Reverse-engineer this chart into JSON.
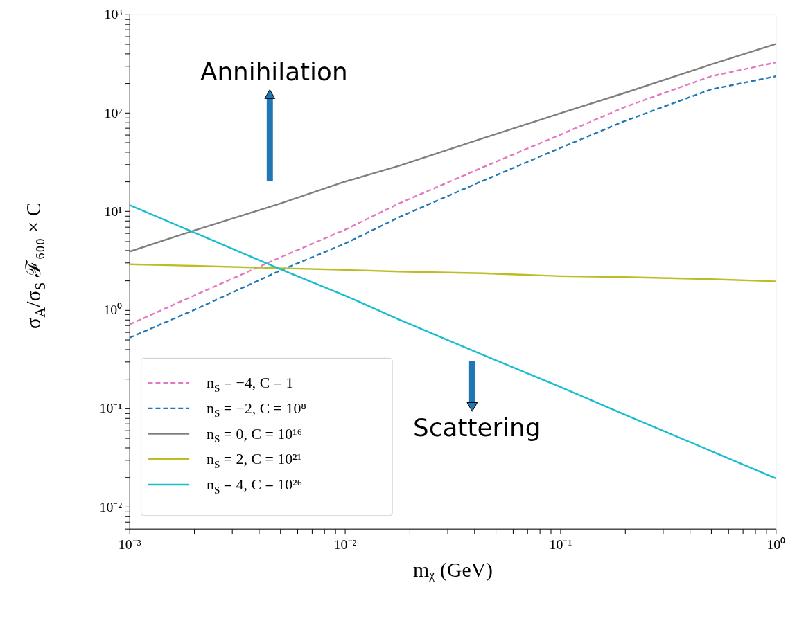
{
  "chart_data": {
    "type": "line",
    "xlabel": "mᵪ (GeV)",
    "ylabel": "σ$_{A}$/σ$_{S}$ ℱ₆₀₀ × C",
    "x": [
      0.001,
      0.002,
      0.005,
      0.01,
      0.0178,
      0.0436,
      0.1,
      0.2,
      0.5,
      1.0
    ],
    "series": [
      {
        "name": "n$_{S}$ = −4, C = 1",
        "color": "#e377c2",
        "line_style": "dashed",
        "values": [
          0.71,
          1.4,
          3.4,
          6.5,
          12,
          28,
          60,
          115,
          235,
          325
        ]
      },
      {
        "name": "n$_{S}$ = −2, C = 10⁸",
        "color": "#1f77b4",
        "line_style": "dashed",
        "values": [
          0.52,
          1.0,
          2.5,
          4.7,
          8.7,
          20.4,
          44,
          83,
          173,
          235
        ]
      },
      {
        "name": "n$_{S}$ = 0, C = 10¹⁶",
        "color": "#7f7f7f",
        "line_style": "solid",
        "values": [
          3.9,
          6.4,
          12,
          20,
          29,
          55,
          99,
          160,
          310,
          500
        ]
      },
      {
        "name": "n$_{S}$ = 2, C = 10²¹",
        "color": "#bcbd22",
        "line_style": "solid",
        "values": [
          2.9,
          2.8,
          2.65,
          2.55,
          2.45,
          2.35,
          2.2,
          2.15,
          2.05,
          1.95
        ]
      },
      {
        "name": "n$_{S}$ = 4, C = 10²⁶",
        "color": "#17becf",
        "line_style": "solid",
        "values": [
          11.6,
          6.1,
          2.6,
          1.4,
          0.8,
          0.35,
          0.165,
          0.086,
          0.037,
          0.0195
        ]
      }
    ],
    "log": "xy",
    "xlim": [
      0.001,
      1.0
    ],
    "ylim": [
      0.006,
      1000
    ],
    "xticks": [
      {
        "value": 0.001,
        "label": "10⁻³"
      },
      {
        "value": 0.002,
        "label": null
      },
      {
        "value": 0.003,
        "label": null
      },
      {
        "value": 0.004,
        "label": null
      },
      {
        "value": 0.005,
        "label": null
      },
      {
        "value": 0.006,
        "label": null
      },
      {
        "value": 0.007,
        "label": null
      },
      {
        "value": 0.008,
        "label": null
      },
      {
        "value": 0.009,
        "label": null
      },
      {
        "value": 0.01,
        "label": "10⁻²"
      },
      {
        "value": 0.02,
        "label": null
      },
      {
        "value": 0.03,
        "label": null
      },
      {
        "value": 0.04,
        "label": null
      },
      {
        "value": 0.05,
        "label": null
      },
      {
        "value": 0.06,
        "label": null
      },
      {
        "value": 0.07,
        "label": null
      },
      {
        "value": 0.08,
        "label": null
      },
      {
        "value": 0.09,
        "label": null
      },
      {
        "value": 0.1,
        "label": "10⁻¹"
      },
      {
        "value": 0.2,
        "label": null
      },
      {
        "value": 0.3,
        "label": null
      },
      {
        "value": 0.4,
        "label": null
      },
      {
        "value": 0.5,
        "label": null
      },
      {
        "value": 0.6,
        "label": null
      },
      {
        "value": 0.7,
        "label": null
      },
      {
        "value": 0.8,
        "label": null
      },
      {
        "value": 0.9,
        "label": null
      },
      {
        "value": 1.0,
        "label": "10⁰"
      }
    ],
    "yticks": [
      {
        "value": 0.006,
        "label": null
      },
      {
        "value": 0.007,
        "label": null
      },
      {
        "value": 0.008,
        "label": null
      },
      {
        "value": 0.009,
        "label": null
      },
      {
        "value": 0.01,
        "label": "10⁻²"
      },
      {
        "value": 0.02,
        "label": null
      },
      {
        "value": 0.03,
        "label": null
      },
      {
        "value": 0.04,
        "label": null
      },
      {
        "value": 0.05,
        "label": null
      },
      {
        "value": 0.06,
        "label": null
      },
      {
        "value": 0.07,
        "label": null
      },
      {
        "value": 0.08,
        "label": null
      },
      {
        "value": 0.09,
        "label": null
      },
      {
        "value": 0.1,
        "label": "10⁻¹"
      },
      {
        "value": 0.2,
        "label": null
      },
      {
        "value": 0.3,
        "label": null
      },
      {
        "value": 0.4,
        "label": null
      },
      {
        "value": 0.5,
        "label": null
      },
      {
        "value": 0.6,
        "label": null
      },
      {
        "value": 0.7,
        "label": null
      },
      {
        "value": 0.8,
        "label": null
      },
      {
        "value": 0.9,
        "label": null
      },
      {
        "value": 1,
        "label": "10⁰"
      },
      {
        "value": 2,
        "label": null
      },
      {
        "value": 3,
        "label": null
      },
      {
        "value": 4,
        "label": null
      },
      {
        "value": 5,
        "label": null
      },
      {
        "value": 6,
        "label": null
      },
      {
        "value": 7,
        "label": null
      },
      {
        "value": 8,
        "label": null
      },
      {
        "value": 9,
        "label": null
      },
      {
        "value": 10,
        "label": "10¹"
      },
      {
        "value": 20,
        "label": null
      },
      {
        "value": 30,
        "label": null
      },
      {
        "value": 40,
        "label": null
      },
      {
        "value": 50,
        "label": null
      },
      {
        "value": 60,
        "label": null
      },
      {
        "value": 70,
        "label": null
      },
      {
        "value": 80,
        "label": null
      },
      {
        "value": 90,
        "label": null
      },
      {
        "value": 100,
        "label": "10²"
      },
      {
        "value": 200,
        "label": null
      },
      {
        "value": 300,
        "label": null
      },
      {
        "value": 400,
        "label": null
      },
      {
        "value": 500,
        "label": null
      },
      {
        "value": 600,
        "label": null
      },
      {
        "value": 700,
        "label": null
      },
      {
        "value": 800,
        "label": null
      },
      {
        "value": 900,
        "label": null
      },
      {
        "value": 1000,
        "label": "10³"
      }
    ],
    "annotations": [
      "Annihilation",
      "Scattering"
    ],
    "legend": "bottom left",
    "grid": false,
    "marker": "none"
  }
}
